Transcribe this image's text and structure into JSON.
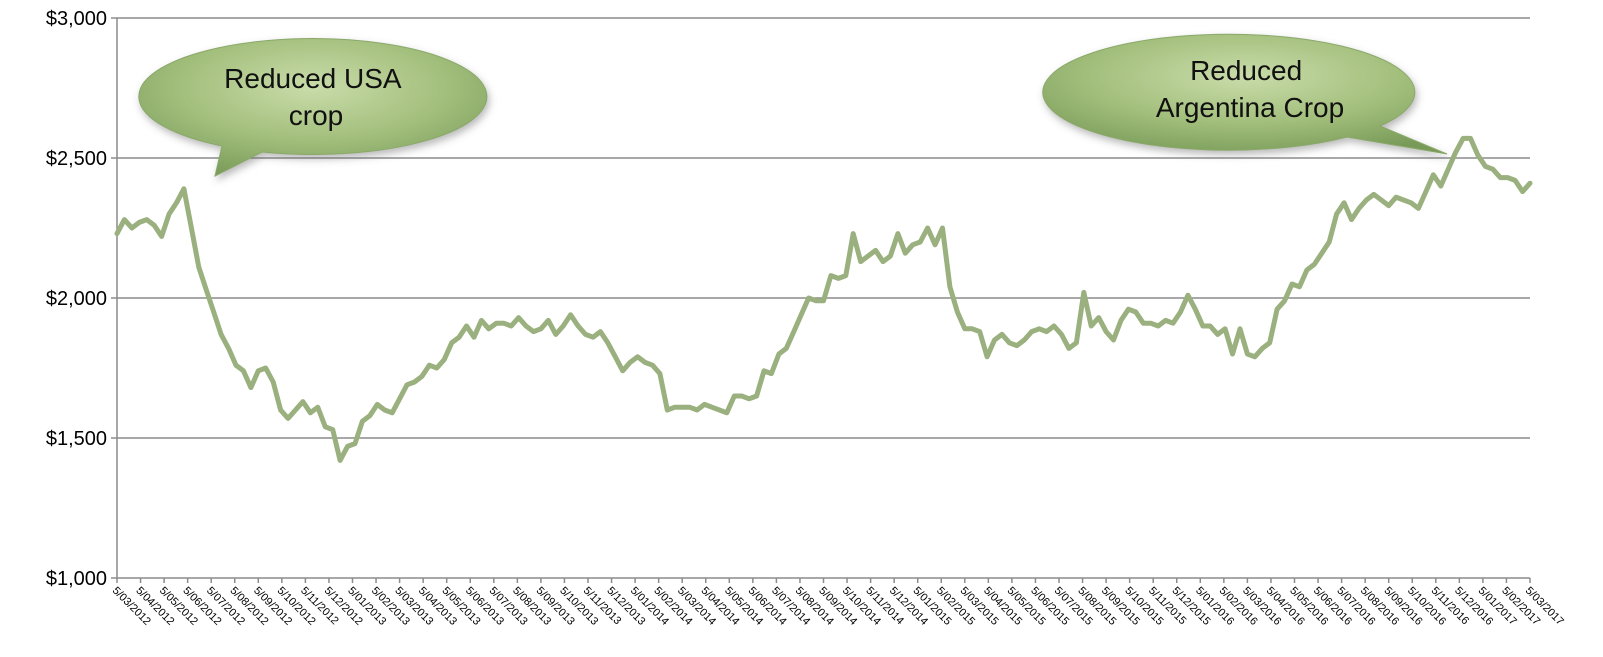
{
  "chart_data": {
    "type": "line",
    "title": "",
    "xlabel": "",
    "ylabel": "",
    "ylim": [
      1000,
      3000
    ],
    "yticks": [
      1000,
      1500,
      2000,
      2500,
      3000
    ],
    "ytick_labels": [
      "$1,000",
      "$1,500",
      "$2,000",
      "$2,500",
      "$3,000"
    ],
    "grid": true,
    "legend": "none",
    "line_color": "#9ab07e",
    "x_tick_labels": [
      "5/03/2012",
      "5/04/2012",
      "5/05/2012",
      "5/06/2012",
      "5/07/2012",
      "5/08/2012",
      "5/09/2012",
      "5/10/2012",
      "5/11/2012",
      "5/12/2012",
      "5/01/2013",
      "5/02/2013",
      "5/03/2013",
      "5/04/2013",
      "5/05/2013",
      "5/06/2013",
      "5/07/2013",
      "5/08/2013",
      "5/09/2013",
      "5/10/2013",
      "5/11/2013",
      "5/12/2013",
      "5/01/2014",
      "5/02/2014",
      "5/03/2014",
      "5/04/2014",
      "5/05/2014",
      "5/06/2014",
      "5/07/2014",
      "5/08/2014",
      "5/09/2014",
      "5/10/2014",
      "5/11/2014",
      "5/12/2014",
      "5/01/2015",
      "5/02/2015",
      "5/03/2015",
      "5/04/2015",
      "5/05/2015",
      "5/06/2015",
      "5/07/2015",
      "5/08/2015",
      "5/09/2015",
      "5/10/2015",
      "5/11/2015",
      "5/12/2015",
      "5/01/2016",
      "5/02/2016",
      "5/03/2016",
      "5/04/2016",
      "5/05/2016",
      "5/06/2016",
      "5/07/2016",
      "5/08/2016",
      "5/09/2016",
      "5/10/2016",
      "5/11/2016",
      "5/12/2016",
      "5/01/2017",
      "5/02/2017",
      "5/03/2017"
    ],
    "series": [
      {
        "values": [
          2230,
          2280,
          2250,
          2270,
          2280,
          2260,
          2220,
          2300,
          2340,
          2390,
          2250,
          2110,
          2030,
          1950,
          1870,
          1820,
          1760,
          1740,
          1680,
          1740,
          1750,
          1700,
          1600,
          1570,
          1600,
          1630,
          1590,
          1610,
          1540,
          1530,
          1420,
          1470,
          1480,
          1560,
          1580,
          1620,
          1600,
          1590,
          1640,
          1690,
          1700,
          1720,
          1760,
          1750,
          1780,
          1840,
          1860,
          1900,
          1860,
          1920,
          1890,
          1910,
          1910,
          1900,
          1930,
          1900,
          1880,
          1890,
          1920,
          1870,
          1900,
          1940,
          1900,
          1870,
          1860,
          1880,
          1840,
          1790,
          1740,
          1770,
          1790,
          1770,
          1760,
          1730,
          1600,
          1610,
          1610,
          1610,
          1600,
          1620,
          1610,
          1600,
          1590,
          1650,
          1650,
          1640,
          1650,
          1740,
          1730,
          1800,
          1820,
          1880,
          1940,
          2000,
          1990,
          1990,
          2080,
          2070,
          2080,
          2230,
          2130,
          2150,
          2170,
          2130,
          2150,
          2230,
          2160,
          2190,
          2200,
          2250,
          2190,
          2250,
          2040,
          1950,
          1890,
          1890,
          1880,
          1790,
          1850,
          1870,
          1840,
          1830,
          1850,
          1880,
          1890,
          1880,
          1900,
          1870,
          1820,
          1840,
          2020,
          1900,
          1930,
          1880,
          1850,
          1920,
          1960,
          1950,
          1910,
          1910,
          1900,
          1920,
          1910,
          1950,
          2010,
          1960,
          1900,
          1900,
          1870,
          1890,
          1800,
          1890,
          1800,
          1790,
          1820,
          1840,
          1960,
          1990,
          2050,
          2040,
          2100,
          2120,
          2160,
          2200,
          2300,
          2340,
          2280,
          2320,
          2350,
          2370,
          2350,
          2330,
          2360,
          2350,
          2340,
          2320,
          2380,
          2440,
          2400,
          2460,
          2520,
          2570,
          2570,
          2510,
          2470,
          2460,
          2430,
          2430,
          2420,
          2380,
          2410
        ]
      }
    ],
    "annotations": [
      {
        "lines": [
          "Reduced USA",
          "crop"
        ]
      },
      {
        "lines": [
          "Reduced",
          "Argentina Crop"
        ]
      }
    ]
  }
}
